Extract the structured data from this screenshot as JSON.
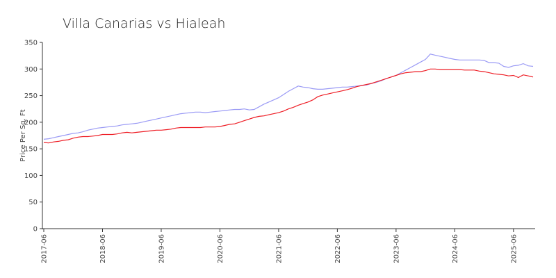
{
  "chart_data": {
    "type": "line",
    "title": "Villa Canarias vs Hialeah",
    "y_label": "Price Per Sq. Ft",
    "x": [
      "2017-06",
      "2017-07",
      "2017-08",
      "2017-09",
      "2017-10",
      "2017-11",
      "2017-12",
      "2018-01",
      "2018-02",
      "2018-03",
      "2018-04",
      "2018-05",
      "2018-06",
      "2018-07",
      "2018-08",
      "2018-09",
      "2018-10",
      "2018-11",
      "2018-12",
      "2019-01",
      "2019-02",
      "2019-03",
      "2019-04",
      "2019-05",
      "2019-06",
      "2019-07",
      "2019-08",
      "2019-09",
      "2019-10",
      "2019-11",
      "2019-12",
      "2020-01",
      "2020-02",
      "2020-03",
      "2020-04",
      "2020-05",
      "2020-06",
      "2020-07",
      "2020-08",
      "2020-09",
      "2020-10",
      "2020-11",
      "2020-12",
      "2021-01",
      "2021-02",
      "2021-03",
      "2021-04",
      "2021-05",
      "2021-06",
      "2021-07",
      "2021-08",
      "2021-09",
      "2021-10",
      "2021-11",
      "2021-12",
      "2022-01",
      "2022-02",
      "2022-03",
      "2022-04",
      "2022-05",
      "2022-06",
      "2022-07",
      "2022-08",
      "2022-09",
      "2022-10",
      "2022-11",
      "2022-12",
      "2023-01",
      "2023-02",
      "2023-03",
      "2023-04",
      "2023-05",
      "2023-06",
      "2023-07",
      "2023-08",
      "2023-09",
      "2023-10",
      "2023-11",
      "2023-12",
      "2024-01",
      "2024-02",
      "2024-03",
      "2024-04",
      "2024-05",
      "2024-06",
      "2024-07",
      "2024-08",
      "2024-09",
      "2024-10",
      "2024-11",
      "2024-12",
      "2025-01",
      "2025-02",
      "2025-03",
      "2025-04",
      "2025-05",
      "2025-06",
      "2025-07",
      "2025-08",
      "2025-09",
      "2025-10"
    ],
    "series": [
      {
        "color": "#9a9af5",
        "values": [
          168,
          169,
          171,
          173,
          175,
          177,
          179,
          180,
          182,
          185,
          187,
          189,
          190,
          191,
          192,
          193,
          195,
          196,
          197,
          198,
          200,
          202,
          204,
          206,
          208,
          210,
          212,
          214,
          216,
          217,
          218,
          219,
          219,
          218,
          219,
          220,
          221,
          222,
          223,
          224,
          224,
          225,
          223,
          224,
          229,
          234,
          238,
          242,
          246,
          252,
          258,
          263,
          268,
          266,
          265,
          263,
          262,
          262,
          263,
          264,
          265,
          266,
          266,
          267,
          268,
          269,
          270,
          273,
          275,
          278,
          282,
          285,
          288,
          293,
          298,
          303,
          308,
          313,
          318,
          328,
          326,
          324,
          322,
          320,
          318,
          317,
          317,
          317,
          317,
          317,
          316,
          312,
          312,
          311,
          305,
          303,
          306,
          307,
          310,
          306,
          305
        ]
      },
      {
        "color": "#ee1c24",
        "values": [
          162,
          161,
          163,
          164,
          166,
          167,
          170,
          172,
          173,
          173,
          174,
          175,
          177,
          177,
          177,
          178,
          180,
          181,
          180,
          181,
          182,
          183,
          184,
          185,
          185,
          186,
          187,
          189,
          190,
          190,
          190,
          190,
          190,
          191,
          191,
          191,
          192,
          194,
          196,
          197,
          200,
          203,
          206,
          209,
          211,
          212,
          214,
          216,
          218,
          221,
          225,
          228,
          232,
          235,
          238,
          242,
          248,
          251,
          253,
          255,
          257,
          259,
          261,
          264,
          267,
          269,
          271,
          273,
          276,
          279,
          282,
          285,
          288,
          291,
          293,
          294,
          295,
          295,
          297,
          300,
          300,
          299,
          299,
          299,
          299,
          299,
          298,
          298,
          298,
          296,
          295,
          293,
          291,
          290,
          289,
          287,
          288,
          284,
          289,
          287,
          285
        ]
      }
    ],
    "xlim": [
      "2017-06",
      "2025-10"
    ],
    "xticks": [
      "2017-06",
      "2018-06",
      "2019-06",
      "2020-06",
      "2021-06",
      "2022-06",
      "2023-06",
      "2024-06",
      "2025-06"
    ],
    "ylim": [
      0,
      350
    ],
    "yticks": [
      0,
      50,
      100,
      150,
      200,
      250,
      300,
      350
    ],
    "grid": false
  }
}
